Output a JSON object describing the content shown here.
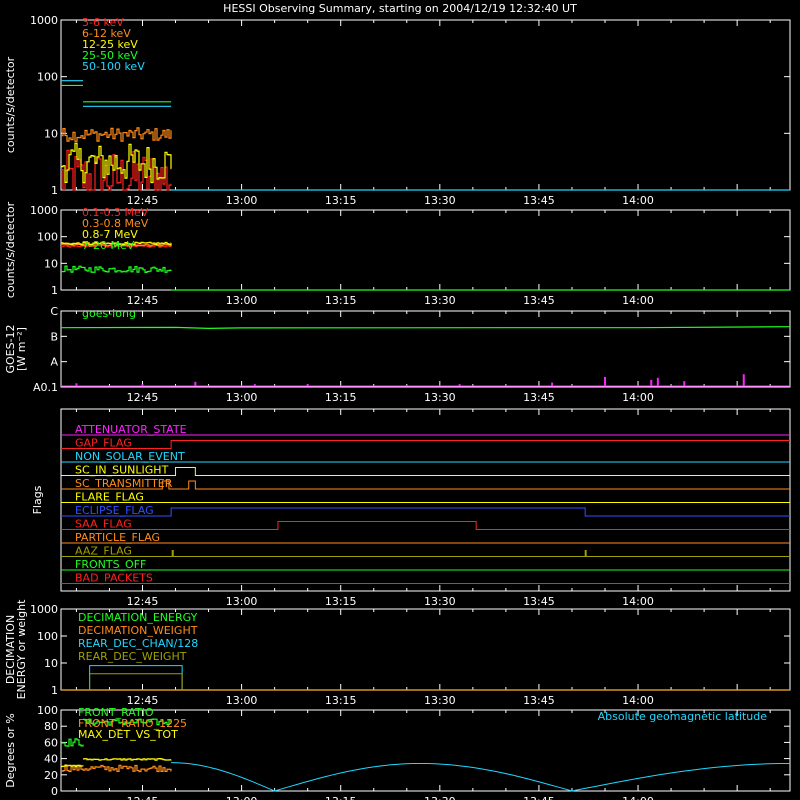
{
  "chart_data": {
    "type": "line",
    "title": "HESSI Observing Summary, starting on 2004/12/19 12:32:40 UT",
    "x_range": [
      "12:32:40",
      "14:23:00"
    ],
    "x_ticks": [
      {
        "time": "12:45",
        "label": "12:45"
      },
      {
        "time": "13:00",
        "label": "13:00"
      },
      {
        "time": "13:15",
        "label": "13:15"
      },
      {
        "time": "13:30",
        "label": "13:30"
      },
      {
        "time": "13:45",
        "label": "13:45"
      },
      {
        "time": "14:00",
        "label": "14:00"
      }
    ],
    "panels": [
      {
        "id": "lo-energy",
        "ylabel": "counts/s/detector",
        "yscale": "log",
        "ylim": [
          1,
          1000
        ],
        "y_ticks": [
          {
            "v": 1,
            "label": "1"
          },
          {
            "v": 10,
            "label": "10"
          },
          {
            "v": 100,
            "label": "100"
          },
          {
            "v": 1000,
            "label": "1000"
          }
        ],
        "series": [
          {
            "name": "3-6 keV",
            "color": "#ff2020",
            "segments": [
              {
                "t0": "12:32:40",
                "t1": "12:49:20",
                "v": 1.6,
                "noise": 0.5
              }
            ]
          },
          {
            "name": "6-12 keV",
            "color": "#ff8c1a",
            "segments": [
              {
                "t0": "12:32:40",
                "t1": "12:49:20",
                "v": 9.5,
                "noise": 0.12
              }
            ]
          },
          {
            "name": "12-25 keV",
            "color": "#ffff00",
            "segments": [
              {
                "t0": "12:32:40",
                "t1": "12:49:20",
                "v": 3.0,
                "noise": 0.35
              }
            ]
          },
          {
            "name": "25-50 keV",
            "color": "#20ff20",
            "segments": [
              {
                "t0": "12:32:40",
                "t1": "12:36:00",
                "v": 70
              },
              {
                "t0": "12:36:00",
                "t1": "12:49:20",
                "v": 36
              }
            ]
          },
          {
            "name": "50-100 keV",
            "color": "#20d8ff",
            "segments": [
              {
                "t0": "12:32:40",
                "t1": "12:36:00",
                "v": 85
              },
              {
                "t0": "12:36:00",
                "t1": "12:49:20",
                "v": 30
              },
              {
                "t0": "12:49:20",
                "t1": "14:23:00",
                "v": 1
              }
            ]
          }
        ]
      },
      {
        "id": "hi-energy",
        "ylabel": "counts/s/detector",
        "yscale": "log",
        "ylim": [
          1,
          1000
        ],
        "y_ticks": [
          {
            "v": 1,
            "label": "1"
          },
          {
            "v": 10,
            "label": "10"
          },
          {
            "v": 100,
            "label": "100"
          },
          {
            "v": 1000,
            "label": "1000"
          }
        ],
        "series": [
          {
            "name": "0.1-0.3 MeV",
            "color": "#ff2020",
            "segments": [
              {
                "t0": "12:32:40",
                "t1": "12:49:20",
                "v": 45,
                "noise": 0.05
              }
            ]
          },
          {
            "name": "0.3-0.8 MeV",
            "color": "#ff8c1a",
            "segments": [
              {
                "t0": "12:32:40",
                "t1": "12:49:20",
                "v": 50,
                "noise": 0.05
              }
            ]
          },
          {
            "name": "0.8-7 MeV",
            "color": "#ffff00",
            "segments": [
              {
                "t0": "12:32:40",
                "t1": "12:49:20",
                "v": 55,
                "noise": 0.05
              }
            ]
          },
          {
            "name": "7-20 MeV",
            "color": "#20ff20",
            "segments": [
              {
                "t0": "12:32:40",
                "t1": "12:49:20",
                "v": 6,
                "noise": 0.12
              },
              {
                "t0": "12:49:20",
                "t1": "14:23:00",
                "v": 1
              }
            ]
          }
        ]
      },
      {
        "id": "goes",
        "ylabel": "GOES-12",
        "ylabel2": "[W m⁻²]",
        "yscale": "log",
        "ylim": [
          1e-09,
          1e-06
        ],
        "y_ticks": [
          {
            "v": 1e-09,
            "label": "A0.1"
          },
          {
            "v": 1e-08,
            "label": "A"
          },
          {
            "v": 1e-07,
            "label": "B"
          },
          {
            "v": 1e-06,
            "label": "C"
          }
        ],
        "series": [
          {
            "name": "goes-long",
            "color": "#20ff20",
            "points": [
              [
                "12:32:40",
                2.2e-07
              ],
              [
                "12:50:00",
                2.25e-07
              ],
              [
                "12:55:00",
                2.05e-07
              ],
              [
                "13:00:00",
                2.15e-07
              ],
              [
                "13:40:00",
                2.2e-07
              ],
              [
                "14:00:00",
                2.2e-07
              ],
              [
                "14:23:00",
                2.4e-07
              ]
            ]
          }
        ],
        "spikes": {
          "color": "#ff20ff",
          "base": 1e-09,
          "events": [
            [
              "12:35:00",
              1.4e-09
            ],
            [
              "12:45:00",
              1.3e-09
            ],
            [
              "12:53:00",
              1.6e-09
            ],
            [
              "13:02:00",
              1.3e-09
            ],
            [
              "13:10:00",
              1.3e-09
            ],
            [
              "13:25:00",
              1.2e-09
            ],
            [
              "13:33:00",
              1.3e-09
            ],
            [
              "13:47:00",
              1.5e-09
            ],
            [
              "13:55:00",
              2.5e-09
            ],
            [
              "14:02:00",
              1.9e-09
            ],
            [
              "14:03:00",
              2.3e-09
            ],
            [
              "14:07:00",
              1.7e-09
            ],
            [
              "14:16:00",
              3.2e-09
            ]
          ]
        }
      },
      {
        "id": "flags",
        "ylabel": "Flags",
        "flags": [
          {
            "name": "ATTENUATOR_STATE",
            "color": "#ff20ff",
            "transitions": []
          },
          {
            "name": "GAP_FLAG",
            "color": "#ff2020",
            "transitions": [
              "12:49:20"
            ]
          },
          {
            "name": "NON_SOLAR_EVENT",
            "color": "#20d8ff",
            "transitions": []
          },
          {
            "name": "SC_IN_SUNLIGHT",
            "color": "#ffff00",
            "transitions": [
              "12:50:00",
              "12:53:00"
            ]
          },
          {
            "name": "SC_TRANSMITTER",
            "color": "#ff8c1a",
            "transitions": [
              "12:48:00",
              "12:49:00",
              "12:52:00",
              "12:53:00"
            ]
          },
          {
            "name": "FLARE_FLAG",
            "color": "#ffff00",
            "transitions": []
          },
          {
            "name": "ECLIPSE_FLAG",
            "color": "#3050ff",
            "transitions": [
              "12:49:20",
              "13:52:00"
            ]
          },
          {
            "name": "SAA_FLAG",
            "color": "#ff2020",
            "transitions": [
              "13:05:30",
              "13:35:30"
            ]
          },
          {
            "name": "PARTICLE_FLAG",
            "color": "#ff8c1a",
            "transitions": []
          },
          {
            "name": "AAZ_FLAG",
            "color": "#a0a000",
            "pulses": [
              "12:49:30",
              "13:52:00"
            ]
          },
          {
            "name": "FRONTS_OFF",
            "color": "#20ff20",
            "transitions": []
          },
          {
            "name": "BAD_PACKETS",
            "color": "#ff2020",
            "transitions": []
          }
        ]
      },
      {
        "id": "decimation",
        "ylabel": "DECIMATION",
        "ylabel2": "ENERGY or weight",
        "yscale": "log",
        "ylim": [
          1,
          1000
        ],
        "y_ticks": [
          {
            "v": 1,
            "label": "1"
          },
          {
            "v": 10,
            "label": "10"
          },
          {
            "v": 100,
            "label": "100"
          },
          {
            "v": 1000,
            "label": "1000"
          }
        ],
        "series": [
          {
            "name": "DECIMATION_ENERGY",
            "color": "#20ff20",
            "segments": [
              {
                "t0": "12:32:40",
                "t1": "14:23:00",
                "v": 1
              }
            ]
          },
          {
            "name": "DECIMATION_WEIGHT",
            "color": "#ff8c1a",
            "segments": [
              {
                "t0": "12:32:40",
                "t1": "14:23:00",
                "v": 1
              }
            ]
          },
          {
            "name": "REAR_DEC_CHAN/128",
            "color": "#20d8ff",
            "box": {
              "t0": "12:37:00",
              "t1": "12:51:00",
              "v": 8
            }
          },
          {
            "name": "REAR_DEC_WEIGHT",
            "color": "#a0a000",
            "box": {
              "t0": "12:37:00",
              "t1": "12:51:00",
              "v": 4
            }
          }
        ]
      },
      {
        "id": "ratios",
        "ylabel": "Degrees or %",
        "yscale": "linear",
        "ylim": [
          0,
          100
        ],
        "y_ticks": [
          {
            "v": 0,
            "label": "0"
          },
          {
            "v": 20,
            "label": "20"
          },
          {
            "v": 40,
            "label": "40"
          },
          {
            "v": 60,
            "label": "60"
          },
          {
            "v": 80,
            "label": "80"
          },
          {
            "v": 100,
            "label": "100"
          }
        ],
        "series": [
          {
            "name": "FRONT_RATIO",
            "color": "#20ff20",
            "segments": [
              {
                "t0": "12:32:40",
                "t1": "12:36:00",
                "v": 60,
                "noise": 5
              },
              {
                "t0": "12:36:00",
                "t1": "12:49:20",
                "v": 85,
                "noise": 4
              }
            ]
          },
          {
            "name": "FRONT_RATIO_1225",
            "color": "#ff8c1a",
            "segments": [
              {
                "t0": "12:32:40",
                "t1": "12:49:20",
                "v": 28,
                "noise": 4
              }
            ]
          },
          {
            "name": "MAX_DET_VS_TOT",
            "color": "#ffff00",
            "segments": [
              {
                "t0": "12:32:40",
                "t1": "12:36:00",
                "v": 31,
                "noise": 1
              },
              {
                "t0": "12:36:00",
                "t1": "12:49:20",
                "v": 39,
                "noise": 1
              }
            ]
          }
        ],
        "geolat": {
          "name": "Absolute geomagnetic latitude",
          "color": "#20d8ff",
          "points": [
            [
              "12:49:20",
              35
            ],
            [
              "13:05:00",
              0
            ],
            [
              "13:27:00",
              34
            ],
            [
              "13:50:00",
              0
            ],
            [
              "14:23:00",
              34
            ]
          ]
        }
      }
    ]
  }
}
